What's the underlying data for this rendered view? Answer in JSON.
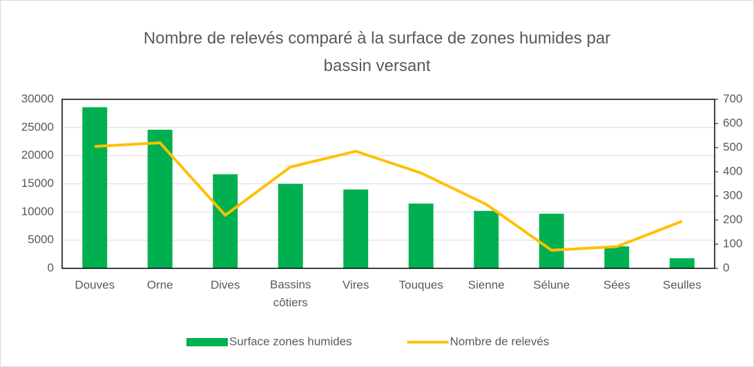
{
  "chart_data": {
    "type": "bar_line",
    "title": "Nombre de relevés comparé à la surface de zones humides par bassin versant",
    "categories": [
      "Douves",
      "Orne",
      "Dives",
      "Bassins côtiers",
      "Vires",
      "Touques",
      "Sienne",
      "Sélune",
      "Sées",
      "Seulles"
    ],
    "series": [
      {
        "name": "Surface zones humides",
        "type": "bar",
        "color": "#00b050",
        "axis": "y",
        "values": [
          28600,
          24600,
          16700,
          15000,
          14000,
          11500,
          10200,
          9700,
          3900,
          1800
        ]
      },
      {
        "name": "Nombre de relevés",
        "type": "line",
        "color": "#ffc000",
        "axis": "y2",
        "values": [
          505,
          520,
          220,
          420,
          485,
          395,
          265,
          75,
          90,
          195
        ]
      }
    ],
    "ylim": [
      0,
      30000
    ],
    "yticks": [
      0,
      5000,
      10000,
      15000,
      20000,
      25000,
      30000
    ],
    "y2lim": [
      0,
      700
    ],
    "y2ticks": [
      0,
      100,
      200,
      300,
      400,
      500,
      600,
      700
    ],
    "grid": true,
    "legend": "bottom"
  }
}
